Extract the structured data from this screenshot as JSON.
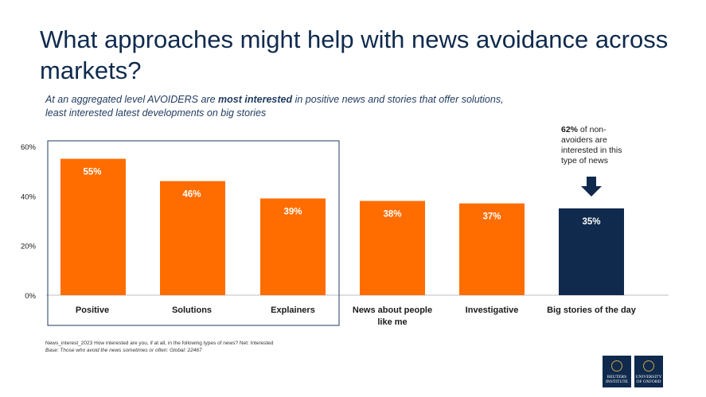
{
  "title": "What approaches might help with news avoidance across markets?",
  "subtitle": {
    "part1": "At an aggregated level AVOIDERS are ",
    "bold": "most interested",
    "part2": " in positive news and stories that offer solutions,",
    "line2": "least interested latest developments on big stories"
  },
  "callout": {
    "bold": "62%",
    "text": " of non-avoiders are interested in this type of news"
  },
  "footnote": {
    "line1": "News_interest_2023 How interested are you, if at all, in the following types of news? Net: Interested",
    "line2": "Base: Those who avoid the news sometimes or often: Global: 22467"
  },
  "logos": {
    "reuters": "REUTERS INSTITUTE",
    "oxford": "UNIVERSITY OF OXFORD"
  },
  "colors": {
    "orange": "#ff6d00",
    "navy": "#0f2a4d",
    "text": "#1a1a1a"
  },
  "chart_data": {
    "type": "bar",
    "categories": [
      "Positive",
      "Solutions",
      "Explainers",
      "News about people like me",
      "Investigative",
      "Big stories of the day"
    ],
    "category_lines": [
      [
        "Positive"
      ],
      [
        "Solutions"
      ],
      [
        "Explainers"
      ],
      [
        "News about people",
        "like me"
      ],
      [
        "Investigative"
      ],
      [
        "Big stories of the day"
      ]
    ],
    "values": [
      55,
      46,
      39,
      38,
      37,
      35
    ],
    "value_labels": [
      "55%",
      "46%",
      "39%",
      "38%",
      "37%",
      "35%"
    ],
    "highlight_index": 5,
    "boxed_categories": [
      "Positive",
      "Solutions",
      "Explainers"
    ],
    "ylim": [
      0,
      60
    ],
    "yticks": [
      0,
      20,
      40,
      60
    ],
    "ytick_labels": [
      "0%",
      "20%",
      "40%",
      "60%"
    ],
    "grid": false,
    "legend": "none"
  }
}
